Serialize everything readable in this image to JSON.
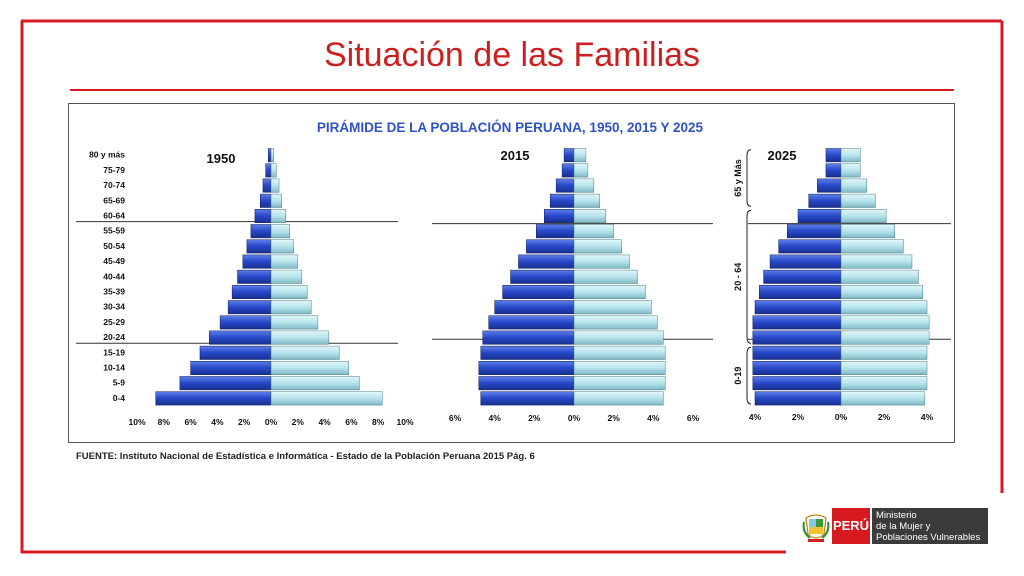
{
  "slide": {
    "title": "Situación de las Familias",
    "source": "FUENTE: Instituto Nacional de Estadística e Informática - Estado de la Población Peruana 2015 Pág. 6",
    "logo": {
      "brand": "PERÚ",
      "ministry_lines": [
        "Ministerio",
        "de la Mujer y",
        "Poblaciones Vulnerables"
      ]
    }
  },
  "colors": {
    "frame_red": "#d71920",
    "male_blue": "#2647c8",
    "female_light": "#b7e4ec",
    "title_blue": "#2f52c6"
  },
  "chart_data": {
    "type": "bar",
    "title": "PIRÁMIDE DE LA POBLACIÓN PERUANA, 1950, 2015 Y 2025",
    "age_groups": [
      "0-4",
      "5-9",
      "10-14",
      "15-19",
      "20-24",
      "25-29",
      "30-34",
      "35-39",
      "40-44",
      "45-49",
      "50-54",
      "55-59",
      "60-64",
      "65-69",
      "70-74",
      "75-79",
      "80 y más"
    ],
    "pyramids": [
      {
        "year": "1950",
        "x_ticks": [
          "10%",
          "8%",
          "6%",
          "4%",
          "2%",
          "0%",
          "2%",
          "4%",
          "6%",
          "8%",
          "10%"
        ],
        "xlim": 10,
        "male": [
          8.6,
          6.8,
          6.0,
          5.3,
          4.6,
          3.8,
          3.2,
          2.9,
          2.5,
          2.1,
          1.8,
          1.5,
          1.2,
          0.8,
          0.6,
          0.4,
          0.2
        ],
        "female": [
          8.3,
          6.6,
          5.8,
          5.1,
          4.3,
          3.5,
          3.0,
          2.7,
          2.3,
          2.0,
          1.7,
          1.4,
          1.1,
          0.8,
          0.6,
          0.4,
          0.2
        ]
      },
      {
        "year": "2015",
        "x_ticks": [
          "6%",
          "4%",
          "2%",
          "0%",
          "2%",
          "4%",
          "6%"
        ],
        "xlim": 6,
        "male": [
          4.7,
          4.8,
          4.8,
          4.7,
          4.6,
          4.3,
          4.0,
          3.6,
          3.2,
          2.8,
          2.4,
          1.9,
          1.5,
          1.2,
          0.9,
          0.6,
          0.5
        ],
        "female": [
          4.5,
          4.6,
          4.6,
          4.6,
          4.5,
          4.2,
          3.9,
          3.6,
          3.2,
          2.8,
          2.4,
          2.0,
          1.6,
          1.3,
          1.0,
          0.7,
          0.6
        ]
      },
      {
        "year": "2025",
        "x_ticks": [
          "4%",
          "2%",
          "0%",
          "2%",
          "4%"
        ],
        "xlim": 4,
        "male": [
          4.0,
          4.1,
          4.1,
          4.1,
          4.1,
          4.1,
          4.0,
          3.8,
          3.6,
          3.3,
          2.9,
          2.5,
          2.0,
          1.5,
          1.1,
          0.7,
          0.7
        ],
        "female": [
          3.9,
          4.0,
          4.0,
          4.0,
          4.1,
          4.1,
          4.0,
          3.8,
          3.6,
          3.3,
          2.9,
          2.5,
          2.1,
          1.6,
          1.2,
          0.9,
          0.9
        ],
        "bracket_labels": [
          "0-19",
          "20 - 64",
          "65 y Más"
        ]
      }
    ]
  }
}
